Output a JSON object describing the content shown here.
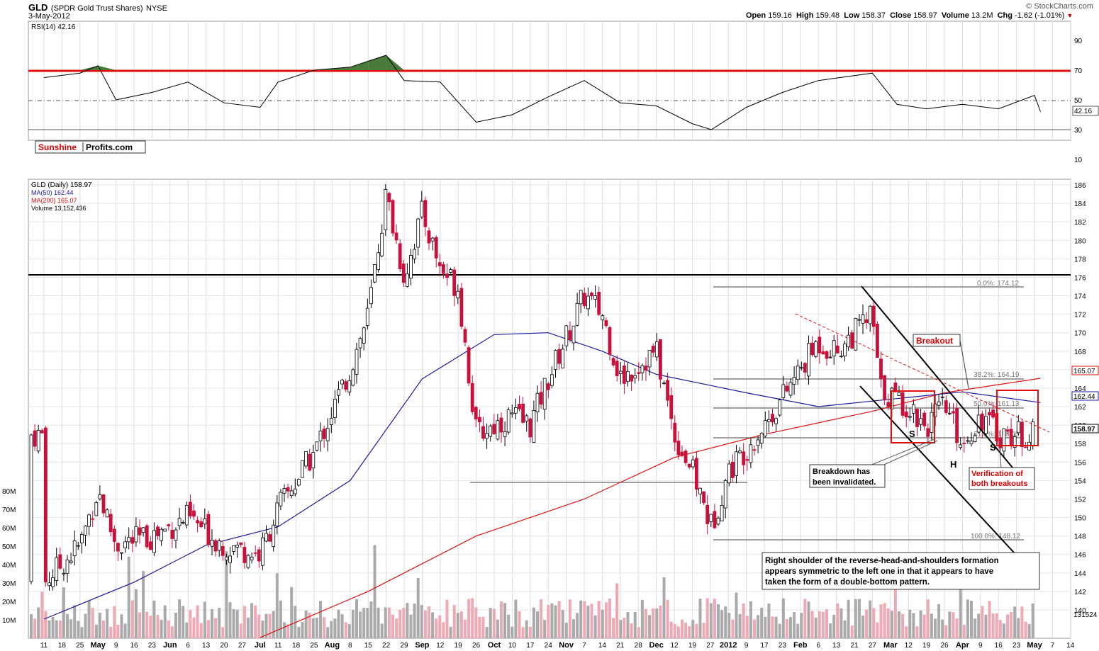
{
  "header": {
    "symbol": "GLD",
    "name": "(SPDR Gold Trust Shares)",
    "exchange": "NYSE",
    "date": "3-May-2012",
    "open_label": "Open",
    "open": "159.16",
    "high_label": "High",
    "high": "159.48",
    "low_label": "Low",
    "low": "158.37",
    "close_label": "Close",
    "close": "158.97",
    "volume_label": "Volume",
    "volume": "13.2M",
    "chg_label": "Chg",
    "chg": "-1.62 (-1.01%)",
    "copyright": "© StockCharts.com"
  },
  "rsi_panel": {
    "title": "RSI(14) 42.16",
    "current_value": "42.16",
    "overbought": 70,
    "oversold": 30,
    "mid": 50,
    "y_ticks": [
      "90",
      "70",
      "50",
      "30",
      "10"
    ],
    "line_color": "#000000",
    "fill_color": "#4a7a3a"
  },
  "watermark": {
    "part1": "Sunshine",
    "part2": "Profits.com"
  },
  "price_panel": {
    "legend": [
      {
        "text": "GLD (Daily) 158.97",
        "color": "#000000"
      },
      {
        "text": "MA(50) 162.44",
        "color": "#1a1aa0"
      },
      {
        "text": "MA(200) 165.07",
        "color": "#e01010"
      },
      {
        "text": "Volume 13,152,436",
        "color": "#000000"
      }
    ],
    "y_ticks": [
      "186",
      "184",
      "182",
      "180",
      "178",
      "176",
      "174",
      "172",
      "170",
      "168",
      "166",
      "164",
      "162",
      "160",
      "158",
      "156",
      "154",
      "152",
      "150",
      "148",
      "146",
      "144",
      "142",
      "140"
    ],
    "vol_ticks": [
      "80M",
      "70M",
      "60M",
      "50M",
      "40M",
      "30M",
      "20M",
      "10M"
    ],
    "badge_ma200": "165.07",
    "badge_ma50": "162.44",
    "badge_close": "158.97",
    "badge_vol": "131524"
  },
  "x_labels": [
    "11",
    "18",
    "25",
    "May",
    "9",
    "16",
    "23",
    "Jun",
    "6",
    "13",
    "20",
    "27",
    "Jul",
    "11",
    "18",
    "25",
    "Aug",
    "8",
    "15",
    "22",
    "29",
    "Sep",
    "12",
    "19",
    "26",
    "Oct",
    "10",
    "17",
    "24",
    "Nov",
    "7",
    "14",
    "21",
    "28",
    "Dec",
    "12",
    "19",
    "27",
    "2012",
    "9",
    "17",
    "23",
    "Feb",
    "6",
    "13",
    "21",
    "27",
    "Mar",
    "12",
    "19",
    "26",
    "Apr",
    "9",
    "16",
    "23",
    "May",
    "7",
    "14"
  ],
  "annotations": {
    "fib_0": "0.0%: 174.12",
    "fib_382": "38.2%: 164.19",
    "fib_50": "50.0%: 161.13",
    "fib_618": "61.8%: 158.05",
    "fib_100": "100.0%: 148.12",
    "breakout": "Breakout",
    "s_left": "S",
    "head": "H",
    "s_right": "S",
    "breakdown_note": [
      "Breakdown has",
      "been invalidated."
    ],
    "verification_note": [
      "Verification of",
      "both breakouts"
    ],
    "main_note": [
      "Right shoulder of the reverse-head-and-shoulders formation",
      "appears symmetric to the left one in that it appears to have",
      "taken the form of a double-bottom pattern."
    ]
  },
  "chart_data": {
    "type": "candlestick",
    "title": "GLD (SPDR Gold Trust Shares) NYSE",
    "period": "Daily, Apr 2011 - May 2012",
    "ylim": [
      139,
      187
    ],
    "resistance_level": 175.5,
    "price_path": [
      {
        "date": "Apr 11",
        "close": 143
      },
      {
        "date": "Apr 25",
        "close": 147
      },
      {
        "date": "May 2",
        "close": 153
      },
      {
        "date": "May 9",
        "close": 147
      },
      {
        "date": "May 23",
        "close": 148
      },
      {
        "date": "Jun 6",
        "close": 150
      },
      {
        "date": "Jun 20",
        "close": 147
      },
      {
        "date": "Jul 1",
        "close": 146
      },
      {
        "date": "Jul 11",
        "close": 151
      },
      {
        "date": "Jul 25",
        "close": 157
      },
      {
        "date": "Aug 8",
        "close": 166
      },
      {
        "date": "Aug 15",
        "close": 172
      },
      {
        "date": "Aug 22",
        "close": 185
      },
      {
        "date": "Aug 29",
        "close": 176
      },
      {
        "date": "Sep 5",
        "close": 183
      },
      {
        "date": "Sep 12",
        "close": 177
      },
      {
        "date": "Sep 19",
        "close": 175
      },
      {
        "date": "Sep 26",
        "close": 159
      },
      {
        "date": "Oct 10",
        "close": 161
      },
      {
        "date": "Oct 17",
        "close": 160
      },
      {
        "date": "Oct 24",
        "close": 165
      },
      {
        "date": "Nov 7",
        "close": 174
      },
      {
        "date": "Nov 14",
        "close": 172
      },
      {
        "date": "Nov 21",
        "close": 165
      },
      {
        "date": "Dec 5",
        "close": 168
      },
      {
        "date": "Dec 12",
        "close": 159
      },
      {
        "date": "Dec 19",
        "close": 155
      },
      {
        "date": "Dec 29",
        "close": 149
      },
      {
        "date": "Jan 3",
        "close": 155
      },
      {
        "date": "Jan 17",
        "close": 160
      },
      {
        "date": "Jan 23",
        "close": 163
      },
      {
        "date": "Feb 6",
        "close": 169
      },
      {
        "date": "Feb 13",
        "close": 168
      },
      {
        "date": "Feb 27",
        "close": 172
      },
      {
        "date": "Feb 29",
        "close": 164
      },
      {
        "date": "Mar 12",
        "close": 162
      },
      {
        "date": "Mar 19",
        "close": 160
      },
      {
        "date": "Mar 26",
        "close": 162
      },
      {
        "date": "Apr 2",
        "close": 158
      },
      {
        "date": "Apr 9",
        "close": 161
      },
      {
        "date": "Apr 16",
        "close": 159
      },
      {
        "date": "Apr 23",
        "close": 159
      },
      {
        "date": "May 3",
        "close": 158.97
      }
    ],
    "ma50": [
      {
        "date": "Apr 11",
        "value": 139
      },
      {
        "date": "May 16",
        "value": 143
      },
      {
        "date": "Jun 13",
        "value": 147
      },
      {
        "date": "Jul 11",
        "value": 149
      },
      {
        "date": "Aug 8",
        "value": 154
      },
      {
        "date": "Sep 5",
        "value": 165
      },
      {
        "date": "Oct 3",
        "value": 169.8
      },
      {
        "date": "Oct 24",
        "value": 170
      },
      {
        "date": "Nov 14",
        "value": 168
      },
      {
        "date": "Dec 5",
        "value": 165.5
      },
      {
        "date": "Jan 9",
        "value": 163.5
      },
      {
        "date": "Feb 6",
        "value": 162
      },
      {
        "date": "Mar 12",
        "value": 163
      },
      {
        "date": "Apr 2",
        "value": 163.6
      },
      {
        "date": "May 3",
        "value": 162.44
      }
    ],
    "ma200": [
      {
        "date": "Jul 1",
        "value": 137
      },
      {
        "date": "Aug 15",
        "value": 142
      },
      {
        "date": "Sep 26",
        "value": 148
      },
      {
        "date": "Nov 7",
        "value": 152
      },
      {
        "date": "Dec 12",
        "value": 156.5
      },
      {
        "date": "Jan 17",
        "value": 159
      },
      {
        "date": "Feb 27",
        "value": 161.5
      },
      {
        "date": "Mar 26",
        "value": 163.5
      },
      {
        "date": "May 3",
        "value": 165.07
      }
    ],
    "rsi": [
      {
        "date": "Apr 11",
        "value": 65
      },
      {
        "date": "Apr 25",
        "value": 68
      },
      {
        "date": "May 2",
        "value": 73
      },
      {
        "date": "May 9",
        "value": 50
      },
      {
        "date": "May 23",
        "value": 55
      },
      {
        "date": "Jun 6",
        "value": 62
      },
      {
        "date": "Jun 20",
        "value": 48
      },
      {
        "date": "Jul 1",
        "value": 45
      },
      {
        "date": "Jul 11",
        "value": 62
      },
      {
        "date": "Jul 25",
        "value": 70
      },
      {
        "date": "Aug 8",
        "value": 72
      },
      {
        "date": "Aug 15",
        "value": 76
      },
      {
        "date": "Aug 22",
        "value": 80
      },
      {
        "date": "Aug 29",
        "value": 63
      },
      {
        "date": "Sep 12",
        "value": 62
      },
      {
        "date": "Sep 26",
        "value": 35
      },
      {
        "date": "Oct 10",
        "value": 40
      },
      {
        "date": "Oct 24",
        "value": 52
      },
      {
        "date": "Nov 7",
        "value": 63
      },
      {
        "date": "Nov 21",
        "value": 48
      },
      {
        "date": "Dec 5",
        "value": 46
      },
      {
        "date": "Dec 19",
        "value": 34
      },
      {
        "date": "Dec 29",
        "value": 30
      },
      {
        "date": "Jan 9",
        "value": 45
      },
      {
        "date": "Jan 23",
        "value": 55
      },
      {
        "date": "Feb 6",
        "value": 63
      },
      {
        "date": "Feb 27",
        "value": 68
      },
      {
        "date": "Mar 5",
        "value": 47
      },
      {
        "date": "Mar 19",
        "value": 44
      },
      {
        "date": "Apr 2",
        "value": 47
      },
      {
        "date": "Apr 16",
        "value": 44
      },
      {
        "date": "May 1",
        "value": 53
      },
      {
        "date": "May 3",
        "value": 42.16
      }
    ],
    "fib_levels": [
      {
        "label": "0.0%",
        "value": 174.12
      },
      {
        "label": "38.2%",
        "value": 164.19
      },
      {
        "label": "50.0%",
        "value": 161.13
      },
      {
        "label": "61.8%",
        "value": 158.05
      },
      {
        "label": "100.0%",
        "value": 148.12
      }
    ],
    "volume_ylim": [
      0,
      85
    ]
  }
}
